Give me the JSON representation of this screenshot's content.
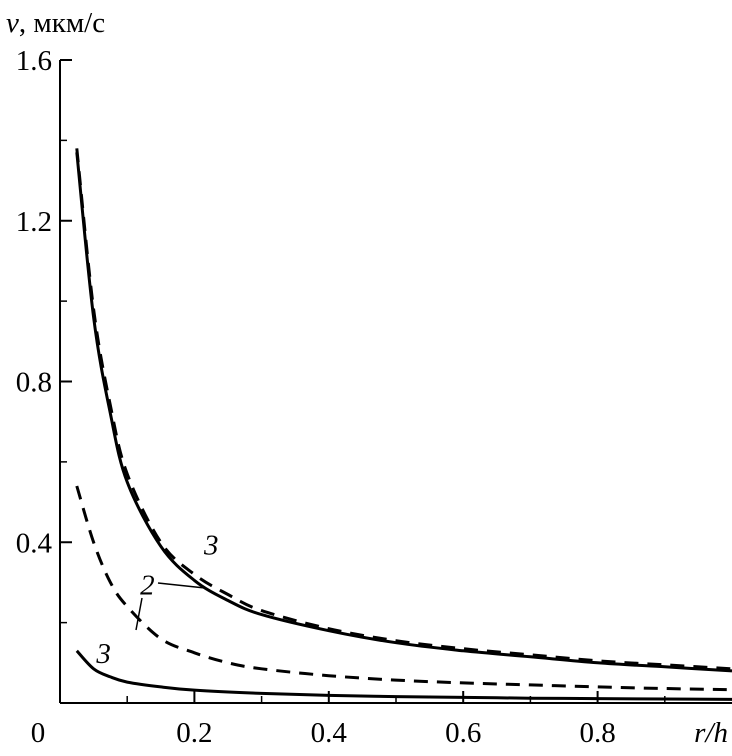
{
  "chart_data": {
    "type": "line",
    "ylabel_var": "v",
    "ylabel_unit": ", мкм/с",
    "xlabel": "r/h",
    "xlim": [
      0,
      1.0
    ],
    "ylim": [
      0,
      1.6
    ],
    "xticks": [
      0.2,
      0.4,
      0.6,
      0.8
    ],
    "xtick_labels": [
      "0.2",
      "0.4",
      "0.6",
      "0.8"
    ],
    "yticks": [
      0.4,
      0.8,
      1.2,
      1.6
    ],
    "ytick_labels": [
      "0.4",
      "0.8",
      "1.2",
      "1.6"
    ],
    "origin_label": "0",
    "grid": false,
    "series": [
      {
        "style": "dashed",
        "x": [
          0.025,
          0.05,
          0.075,
          0.1,
          0.15,
          0.2,
          0.25,
          0.3,
          0.4,
          0.5,
          0.6,
          0.7,
          0.8,
          0.9,
          1.0
        ],
        "y": [
          1.38,
          0.98,
          0.74,
          0.57,
          0.4,
          0.32,
          0.27,
          0.23,
          0.185,
          0.155,
          0.135,
          0.12,
          0.105,
          0.095,
          0.085
        ]
      },
      {
        "style": "solid",
        "x": [
          0.025,
          0.05,
          0.075,
          0.1,
          0.15,
          0.2,
          0.25,
          0.3,
          0.4,
          0.5,
          0.6,
          0.7,
          0.8,
          0.9,
          1.0
        ],
        "y": [
          1.37,
          0.96,
          0.72,
          0.55,
          0.39,
          0.305,
          0.255,
          0.22,
          0.18,
          0.15,
          0.13,
          0.115,
          0.1,
          0.09,
          0.08
        ]
      },
      {
        "style": "dashed",
        "x": [
          0.025,
          0.05,
          0.075,
          0.1,
          0.15,
          0.2,
          0.25,
          0.3,
          0.4,
          0.5,
          0.6,
          0.7,
          0.8,
          0.9,
          1.0
        ],
        "y": [
          0.54,
          0.4,
          0.3,
          0.24,
          0.16,
          0.125,
          0.1,
          0.085,
          0.068,
          0.057,
          0.05,
          0.045,
          0.04,
          0.036,
          0.033
        ]
      },
      {
        "style": "solid",
        "x": [
          0.025,
          0.05,
          0.075,
          0.1,
          0.15,
          0.2,
          0.3,
          0.4,
          0.5,
          0.6,
          0.7,
          0.8,
          0.9,
          1.0
        ],
        "y": [
          0.13,
          0.085,
          0.065,
          0.052,
          0.04,
          0.032,
          0.024,
          0.019,
          0.016,
          0.014,
          0.012,
          0.011,
          0.01,
          0.009
        ]
      }
    ],
    "annotations": [
      {
        "text": "3",
        "x": 0.225,
        "y": 0.37
      },
      {
        "text": "2",
        "x": 0.13,
        "y": 0.27
      },
      {
        "text": "3",
        "x": 0.065,
        "y": 0.1
      }
    ]
  }
}
